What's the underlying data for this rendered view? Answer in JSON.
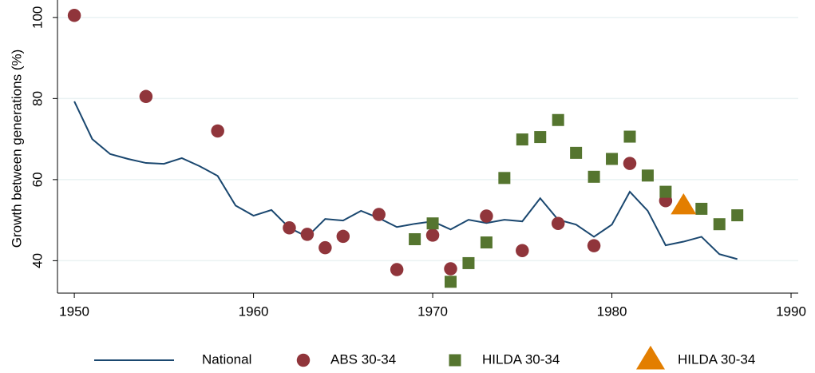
{
  "chart_data": {
    "type": "line",
    "y_label": "Growth between generations (%)",
    "xlim": [
      1949.06,
      1990.4
    ],
    "xticks": [
      1950,
      1960,
      1970,
      1980,
      1990
    ],
    "ylim": [
      32,
      104.3
    ],
    "yticks": [
      40,
      60,
      80,
      100
    ],
    "grid": true,
    "series": [
      {
        "name": "National",
        "type": "line",
        "color": "#1a476f",
        "x": [
          1950,
          1951,
          1952,
          1953,
          1954,
          1955,
          1956,
          1957,
          1958,
          1959,
          1960,
          1961,
          1962,
          1963,
          1964,
          1965,
          1966,
          1967,
          1968,
          1969,
          1970,
          1971,
          1972,
          1973,
          1974,
          1975,
          1976,
          1977,
          1978,
          1979,
          1980,
          1981,
          1982,
          1983,
          1984,
          1985,
          1986,
          1987
        ],
        "values": [
          79.3,
          70.0,
          66.3,
          65.1,
          64.1,
          63.9,
          65.3,
          63.3,
          60.9,
          53.6,
          51.1,
          52.5,
          48.1,
          45.9,
          50.3,
          49.9,
          52.3,
          50.5,
          48.3,
          49.1,
          49.7,
          47.7,
          50.1,
          49.3,
          50.1,
          49.7,
          55.4,
          50.1,
          48.9,
          45.9,
          48.9,
          57.0,
          52.3,
          43.8,
          44.7,
          45.9,
          41.6,
          40.4
        ]
      },
      {
        "name": "ABS 30-34",
        "type": "scatter",
        "marker": "circle",
        "color": "#90353b",
        "x": [
          1950,
          1954,
          1958,
          1962,
          1963,
          1964,
          1965,
          1967,
          1968,
          1970,
          1971,
          1973,
          1975,
          1977,
          1979,
          1981,
          1983
        ],
        "values": [
          100.5,
          80.5,
          72,
          48.1,
          46.5,
          43.2,
          46,
          51.4,
          37.8,
          46.3,
          38,
          51,
          42.5,
          49.2,
          43.7,
          64,
          54.8
        ]
      },
      {
        "name": "HILDA 30-34",
        "type": "scatter",
        "marker": "square",
        "color": "#55752f",
        "x": [
          1969,
          1970,
          1971,
          1972,
          1973,
          1974,
          1975,
          1976,
          1977,
          1978,
          1979,
          1980,
          1981,
          1982,
          1983,
          1985,
          1986,
          1987
        ],
        "values": [
          45.3,
          49.2,
          34.8,
          39.4,
          44.5,
          60.4,
          69.9,
          70.5,
          74.7,
          66.6,
          60.7,
          65.1,
          70.6,
          61,
          57,
          52.8,
          49,
          51.2
        ]
      },
      {
        "name": "HILDA 30-34",
        "type": "scatter",
        "marker": "triangle",
        "color": "#e37e00",
        "x": [
          1984
        ],
        "values": [
          53.8
        ]
      }
    ]
  }
}
